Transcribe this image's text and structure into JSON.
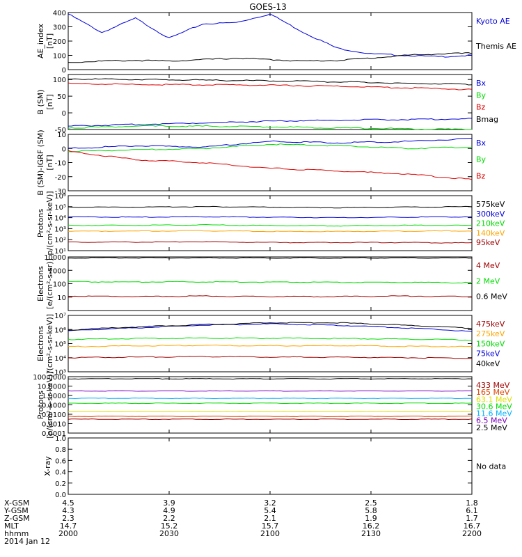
{
  "title": "GOES-13",
  "colors": {
    "black": "#000000",
    "blue": "#0000dd",
    "red": "#dd0000",
    "green": "#00dd00",
    "orange": "#ffa500",
    "cyan": "#00b0ff",
    "purple": "#7a00c0",
    "darkred": "#a00000",
    "yellow": "#dddd00",
    "teal": "#00c0a0",
    "orangered": "#e04000"
  },
  "chart_data": [
    {
      "id": "ae",
      "type": "line",
      "ylabel": [
        "AE_index",
        "[nT]"
      ],
      "ylim": [
        0,
        400
      ],
      "yticks": [
        0,
        100,
        200,
        300,
        400
      ],
      "x": [
        0,
        5,
        10,
        15,
        20,
        25,
        30,
        35,
        40,
        45,
        50,
        55,
        60
      ],
      "series": [
        {
          "name": "Kyoto AE",
          "color": "blue",
          "values": [
            390,
            260,
            360,
            220,
            320,
            330,
            390,
            260,
            150,
            110,
            100,
            90,
            100
          ]
        },
        {
          "name": "Themis AE",
          "color": "black",
          "values": [
            50,
            60,
            65,
            60,
            70,
            80,
            70,
            60,
            65,
            80,
            100,
            110,
            115
          ]
        }
      ]
    },
    {
      "id": "bsm",
      "type": "line",
      "ylabel": [
        "B (SM)",
        "[nT]"
      ],
      "ylim": [
        -50,
        115
      ],
      "yticks": [
        -50,
        0,
        50,
        100
      ],
      "x": [
        0,
        10,
        20,
        30,
        40,
        50,
        60
      ],
      "series": [
        {
          "name": "Bx",
          "color": "blue",
          "values": [
            -40,
            -35,
            -30,
            -25,
            -22,
            -20,
            -18
          ]
        },
        {
          "name": "By",
          "color": "green",
          "values": [
            -45,
            -40,
            -40,
            -42,
            -45,
            -48,
            -50
          ]
        },
        {
          "name": "Bz",
          "color": "red",
          "values": [
            88,
            85,
            84,
            83,
            80,
            75,
            70
          ]
        },
        {
          "name": "Bmag",
          "color": "black",
          "values": [
            102,
            100,
            98,
            96,
            93,
            89,
            85
          ]
        }
      ]
    },
    {
      "id": "bigrf",
      "type": "line",
      "ylabel": [
        "B (SM)-IGRF (SM)",
        "[nT]"
      ],
      "ylim": [
        -30,
        10
      ],
      "yticks": [
        -30,
        -20,
        -10,
        0,
        10
      ],
      "x": [
        0,
        10,
        20,
        30,
        40,
        50,
        60
      ],
      "series": [
        {
          "name": "Bx",
          "color": "blue",
          "values": [
            0,
            2,
            1,
            5,
            4,
            5,
            7
          ]
        },
        {
          "name": "By",
          "color": "green",
          "values": [
            -2,
            -1,
            0,
            3,
            2,
            0,
            1
          ]
        },
        {
          "name": "Bz",
          "color": "red",
          "values": [
            -2,
            -8,
            -10,
            -14,
            -16,
            -18,
            -22
          ]
        }
      ]
    },
    {
      "id": "protons_kev",
      "type": "line",
      "log": true,
      "ylabel": [
        "Protons",
        "p/(cm²-s-sr-keV)]"
      ],
      "ylim": [
        10,
        1000000
      ],
      "yticks": [
        10,
        100,
        1000,
        10000,
        100000,
        1000000
      ],
      "ytick_labels": [
        "10¹",
        "10²",
        "10³",
        "10⁴",
        "10⁵",
        "10⁶"
      ],
      "x": [
        0,
        10,
        20,
        30,
        40,
        50,
        60
      ],
      "series": [
        {
          "name": "575keV",
          "color": "black",
          "values": [
            90000,
            90000,
            100000,
            90000,
            80000,
            90000,
            100000
          ]
        },
        {
          "name": "300keV",
          "color": "blue",
          "values": [
            12000,
            11000,
            12000,
            11000,
            10000,
            11000,
            12000
          ]
        },
        {
          "name": "210keV",
          "color": "green",
          "values": [
            2000,
            2000,
            2200,
            1900,
            1800,
            2000,
            2000
          ]
        },
        {
          "name": "140keV",
          "color": "orange",
          "values": [
            600,
            600,
            650,
            560,
            550,
            600,
            620
          ]
        },
        {
          "name": "95keV",
          "color": "darkred",
          "values": [
            60,
            60,
            65,
            55,
            55,
            55,
            50
          ]
        }
      ]
    },
    {
      "id": "electrons_mev",
      "type": "line",
      "log": true,
      "ylabel": [
        "Electrons",
        "[e/(cm²-s-sr)]"
      ],
      "ylim": [
        1,
        10000
      ],
      "yticks": [
        10,
        100,
        1000,
        10000
      ],
      "ytick_labels": [
        "10",
        "100",
        "1000",
        "10000"
      ],
      "x": [
        0,
        10,
        20,
        30,
        40,
        50,
        60
      ],
      "series": [
        {
          "name": "4 MeV",
          "color": "darkred",
          "values": [
            12,
            11,
            12,
            11,
            11,
            12,
            11
          ]
        },
        {
          "name": "2 MeV",
          "color": "green",
          "values": [
            140,
            135,
            140,
            130,
            128,
            125,
            120
          ]
        },
        {
          "name": "0.6 MeV",
          "color": "black",
          "values": [
            8500,
            8500,
            8500,
            8400,
            8400,
            8400,
            8300
          ]
        }
      ]
    },
    {
      "id": "electrons_kev",
      "type": "line",
      "log": true,
      "ylabel": [
        "Electrons",
        "/(cm²-s-sr-keV)]"
      ],
      "ylim": [
        1000,
        10000000
      ],
      "yticks": [
        1000,
        10000,
        100000,
        1000000,
        10000000
      ],
      "ytick_labels": [
        "10³",
        "10⁴",
        "10⁵",
        "10⁶",
        "10⁷"
      ],
      "x": [
        0,
        10,
        20,
        30,
        40,
        50,
        60
      ],
      "series": [
        {
          "name": "475keV",
          "color": "darkred",
          "values": [
            10000,
            11000,
            12000,
            11000,
            11000,
            10000,
            9000
          ]
        },
        {
          "name": "275keV",
          "color": "orange",
          "values": [
            60000,
            70000,
            75000,
            70000,
            72000,
            65000,
            60000
          ]
        },
        {
          "name": "150keV",
          "color": "green",
          "values": [
            200000,
            230000,
            250000,
            240000,
            230000,
            210000,
            180000
          ]
        },
        {
          "name": "75keV",
          "color": "blue",
          "values": [
            800000,
            1300000,
            2000000,
            2500000,
            2000000,
            1300000,
            700000
          ]
        },
        {
          "name": "40keV",
          "color": "black",
          "values": [
            900000,
            1500000,
            2200000,
            3000000,
            3000000,
            2000000,
            1200000
          ]
        }
      ]
    },
    {
      "id": "protons_mev",
      "type": "line",
      "log": true,
      "ylabel": [
        "Protons",
        "[p/(cm²-s-sr-keV)]"
      ],
      "ylim": [
        0.0001,
        100
      ],
      "yticks": [
        0.0001,
        0.001,
        0.01,
        0.1,
        1,
        10,
        100
      ],
      "ytick_labels": [
        "0.0001",
        "0.0010",
        "0.0100",
        "0.1000",
        "1.0000",
        "10.0000",
        "100.0000"
      ],
      "x": [
        0,
        10,
        20,
        30,
        40,
        50,
        60
      ],
      "series": [
        {
          "name": "433 MeV",
          "color": "darkred",
          "values": [
            0.003,
            0.003,
            0.003,
            0.003,
            0.003,
            0.003,
            0.003
          ]
        },
        {
          "name": "165 MeV",
          "color": "orangered",
          "values": [
            0.006,
            0.006,
            0.006,
            0.006,
            0.006,
            0.006,
            0.006
          ]
        },
        {
          "name": "63.1 MeV",
          "color": "yellow",
          "values": [
            0.02,
            0.02,
            0.02,
            0.02,
            0.02,
            0.02,
            0.02
          ]
        },
        {
          "name": "30.6 MeV",
          "color": "green",
          "values": [
            0.15,
            0.15,
            0.15,
            0.15,
            0.15,
            0.15,
            0.15
          ]
        },
        {
          "name": "11.6 MeV",
          "color": "cyan",
          "values": [
            0.5,
            0.5,
            0.5,
            0.5,
            0.5,
            0.5,
            0.5
          ]
        },
        {
          "name": "6.5 MeV",
          "color": "purple",
          "values": [
            3,
            3,
            3,
            3,
            3,
            3,
            3
          ]
        },
        {
          "name": "2.5 MeV",
          "color": "black",
          "values": [
            60,
            60,
            60,
            60,
            60,
            60,
            60
          ]
        }
      ]
    },
    {
      "id": "xray",
      "type": "line",
      "ylabel": [
        "X-ray"
      ],
      "ylim": [
        0,
        1
      ],
      "yticks": [
        0,
        0.2,
        0.4,
        0.6,
        0.8,
        1.0
      ],
      "ytick_labels": [
        "0.0",
        "0.2",
        "0.4",
        "0.6",
        "0.8",
        "1.0"
      ],
      "note": "No data",
      "series": []
    }
  ],
  "x_axis": {
    "ticks": [
      0,
      30,
      60,
      90,
      120
    ],
    "xlim": [
      0,
      120
    ],
    "rows": [
      {
        "label": "X-GSM",
        "values": [
          "4.5",
          "3.9",
          "3.2",
          "2.5",
          "1.8"
        ]
      },
      {
        "label": "Y-GSM",
        "values": [
          "4.3",
          "4.9",
          "5.4",
          "5.8",
          "6.1"
        ]
      },
      {
        "label": "Z-GSM",
        "values": [
          "2.3",
          "2.2",
          "2.1",
          "1.9",
          "1.7"
        ]
      },
      {
        "label": "MLT",
        "values": [
          "14.7",
          "15.2",
          "15.7",
          "16.2",
          "16.7"
        ]
      },
      {
        "label": "hhmm",
        "values": [
          "2000",
          "2030",
          "2100",
          "2130",
          "2200"
        ]
      }
    ],
    "date": "2014 Jan 12"
  }
}
